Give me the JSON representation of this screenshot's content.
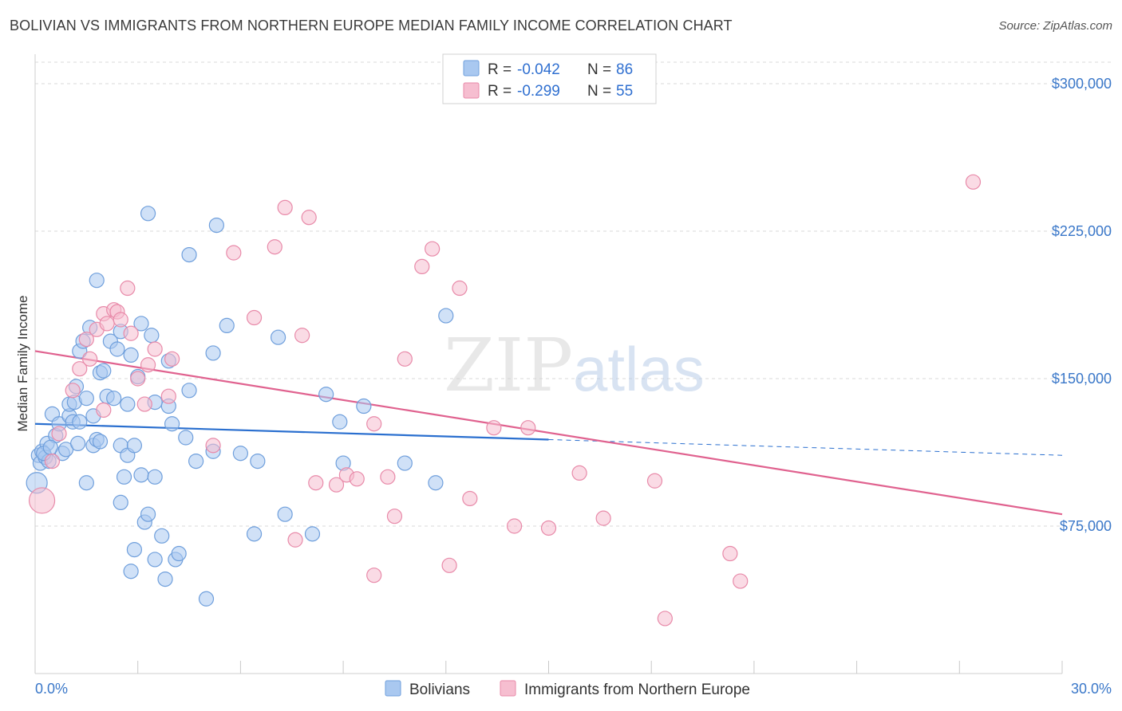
{
  "title": "BOLIVIAN VS IMMIGRANTS FROM NORTHERN EUROPE MEDIAN FAMILY INCOME CORRELATION CHART",
  "source": "Source: ZipAtlas.com",
  "watermark": {
    "zip": "ZIP",
    "atlas": "atlas"
  },
  "legend_top": {
    "r_label": "R =",
    "n_label": "N =",
    "rows": [
      {
        "r": "-0.042",
        "n": "86"
      },
      {
        "r": "-0.299",
        "n": "55"
      }
    ]
  },
  "colors": {
    "blue_fill": "#a9c8f0",
    "blue_stroke": "#6f9fdc",
    "blue_line": "#2a6fcf",
    "pink_fill": "#f6bed0",
    "pink_stroke": "#e88aa9",
    "pink_line": "#e0628f",
    "tick_text": "#3b78c9",
    "grid": "#d8d8d8"
  },
  "chart_data": {
    "type": "scatter",
    "title": "BOLIVIAN VS IMMIGRANTS FROM NORTHERN EUROPE MEDIAN FAMILY INCOME CORRELATION CHART",
    "xlabel": "",
    "ylabel": "Median Family Income",
    "xlim": [
      0,
      30
    ],
    "ylim": [
      0,
      315000
    ],
    "x_tick_labels": [
      "0.0%",
      "30.0%"
    ],
    "y_ticks": [
      75000,
      150000,
      225000,
      300000
    ],
    "y_tick_labels": [
      "$75,000",
      "$150,000",
      "$225,000",
      "$300,000"
    ],
    "grid": true,
    "legend_placement": "bottom-center",
    "series": [
      {
        "name": "Bolivians",
        "color": "#6f9fdc",
        "r": -0.042,
        "n": 86,
        "trend": {
          "x0": 0,
          "y0": 127000,
          "x1": 15,
          "y1": 119000,
          "x_end": 30,
          "y_end": 111000
        },
        "points": [
          [
            0.1,
            111000
          ],
          [
            0.15,
            107000
          ],
          [
            0.2,
            113000
          ],
          [
            0.3,
            110000
          ],
          [
            0.35,
            117000
          ],
          [
            0.4,
            108000
          ],
          [
            0.5,
            132000
          ],
          [
            0.6,
            121000
          ],
          [
            0.7,
            127000
          ],
          [
            0.8,
            112000
          ],
          [
            0.9,
            114000
          ],
          [
            1.0,
            131000
          ],
          [
            1.0,
            137000
          ],
          [
            1.1,
            128000
          ],
          [
            1.15,
            138000
          ],
          [
            1.2,
            146000
          ],
          [
            1.3,
            128000
          ],
          [
            1.3,
            164000
          ],
          [
            1.4,
            169000
          ],
          [
            1.5,
            140000
          ],
          [
            1.5,
            97000
          ],
          [
            1.6,
            176000
          ],
          [
            1.7,
            131000
          ],
          [
            1.7,
            116000
          ],
          [
            1.8,
            200000
          ],
          [
            1.8,
            119000
          ],
          [
            1.9,
            118000
          ],
          [
            1.9,
            153000
          ],
          [
            2.0,
            154000
          ],
          [
            2.1,
            141000
          ],
          [
            2.2,
            169000
          ],
          [
            2.3,
            140000
          ],
          [
            2.4,
            165000
          ],
          [
            2.5,
            174000
          ],
          [
            2.5,
            87000
          ],
          [
            2.5,
            116000
          ],
          [
            2.6,
            100000
          ],
          [
            2.7,
            137000
          ],
          [
            2.7,
            111000
          ],
          [
            2.8,
            162000
          ],
          [
            2.8,
            52000
          ],
          [
            2.9,
            116000
          ],
          [
            2.9,
            63000
          ],
          [
            3.0,
            151000
          ],
          [
            3.1,
            101000
          ],
          [
            3.1,
            178000
          ],
          [
            3.2,
            77000
          ],
          [
            3.3,
            234000
          ],
          [
            3.3,
            81000
          ],
          [
            3.4,
            172000
          ],
          [
            3.5,
            138000
          ],
          [
            3.5,
            100000
          ],
          [
            3.5,
            58000
          ],
          [
            3.7,
            70000
          ],
          [
            3.8,
            48000
          ],
          [
            3.9,
            159000
          ],
          [
            3.9,
            136000
          ],
          [
            4.0,
            127000
          ],
          [
            4.1,
            58000
          ],
          [
            4.2,
            61000
          ],
          [
            4.4,
            120000
          ],
          [
            4.5,
            144000
          ],
          [
            4.5,
            213000
          ],
          [
            4.7,
            108000
          ],
          [
            5.0,
            38000
          ],
          [
            5.2,
            113000
          ],
          [
            5.2,
            163000
          ],
          [
            5.3,
            228000
          ],
          [
            5.6,
            177000
          ],
          [
            6.0,
            112000
          ],
          [
            6.4,
            71000
          ],
          [
            6.5,
            108000
          ],
          [
            7.1,
            171000
          ],
          [
            7.3,
            81000
          ],
          [
            8.1,
            71000
          ],
          [
            8.5,
            142000
          ],
          [
            8.9,
            128000
          ],
          [
            9.0,
            107000
          ],
          [
            9.6,
            136000
          ],
          [
            10.8,
            107000
          ],
          [
            11.7,
            97000
          ],
          [
            12.0,
            182000
          ],
          [
            0.05,
            97000
          ],
          [
            0.25,
            112000
          ],
          [
            0.45,
            115000
          ],
          [
            1.25,
            117000
          ]
        ]
      },
      {
        "name": "Immigrants from Northern Europe",
        "color": "#e88aa9",
        "r": -0.299,
        "n": 55,
        "trend": {
          "x0": 0,
          "y0": 164000,
          "x1": 30,
          "y1": 81000
        },
        "points": [
          [
            0.2,
            88000
          ],
          [
            0.5,
            108000
          ],
          [
            0.7,
            122000
          ],
          [
            1.1,
            144000
          ],
          [
            1.3,
            155000
          ],
          [
            1.5,
            170000
          ],
          [
            1.6,
            160000
          ],
          [
            1.8,
            175000
          ],
          [
            2.0,
            183000
          ],
          [
            2.1,
            178000
          ],
          [
            2.3,
            185000
          ],
          [
            2.4,
            184000
          ],
          [
            2.5,
            180000
          ],
          [
            2.7,
            196000
          ],
          [
            2.8,
            173000
          ],
          [
            3.0,
            150000
          ],
          [
            3.2,
            137000
          ],
          [
            3.3,
            157000
          ],
          [
            3.5,
            165000
          ],
          [
            3.9,
            141000
          ],
          [
            4.0,
            160000
          ],
          [
            5.2,
            116000
          ],
          [
            5.8,
            214000
          ],
          [
            6.4,
            181000
          ],
          [
            7.0,
            217000
          ],
          [
            7.3,
            237000
          ],
          [
            7.6,
            68000
          ],
          [
            7.8,
            172000
          ],
          [
            8.0,
            232000
          ],
          [
            8.2,
            97000
          ],
          [
            8.8,
            96000
          ],
          [
            9.1,
            101000
          ],
          [
            9.4,
            99000
          ],
          [
            9.9,
            50000
          ],
          [
            9.9,
            127000
          ],
          [
            10.3,
            100000
          ],
          [
            10.5,
            80000
          ],
          [
            10.8,
            160000
          ],
          [
            11.3,
            207000
          ],
          [
            11.6,
            216000
          ],
          [
            12.1,
            55000
          ],
          [
            12.4,
            196000
          ],
          [
            12.7,
            89000
          ],
          [
            13.4,
            125000
          ],
          [
            14.0,
            75000
          ],
          [
            14.4,
            125000
          ],
          [
            15.0,
            74000
          ],
          [
            15.9,
            102000
          ],
          [
            16.6,
            79000
          ],
          [
            18.1,
            98000
          ],
          [
            18.4,
            28000
          ],
          [
            20.3,
            61000
          ],
          [
            20.6,
            47000
          ],
          [
            27.4,
            250000
          ],
          [
            2.0,
            134000
          ]
        ]
      }
    ]
  },
  "bottom_legend": [
    "Bolivians",
    "Immigrants from Northern Europe"
  ]
}
